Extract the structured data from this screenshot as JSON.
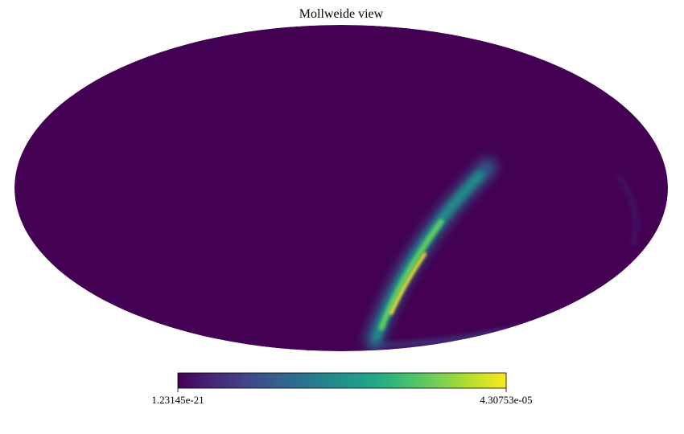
{
  "chart_data": {
    "type": "heatmap",
    "projection": "mollweide",
    "title": "Mollweide view",
    "colormap": "viridis",
    "colorbar": {
      "min_label": "1.23145e-21",
      "max_label": "4.30753e-05",
      "orientation": "horizontal",
      "placement": "bottom"
    },
    "background_color": "#440154",
    "peak_color": "#fde725"
  }
}
